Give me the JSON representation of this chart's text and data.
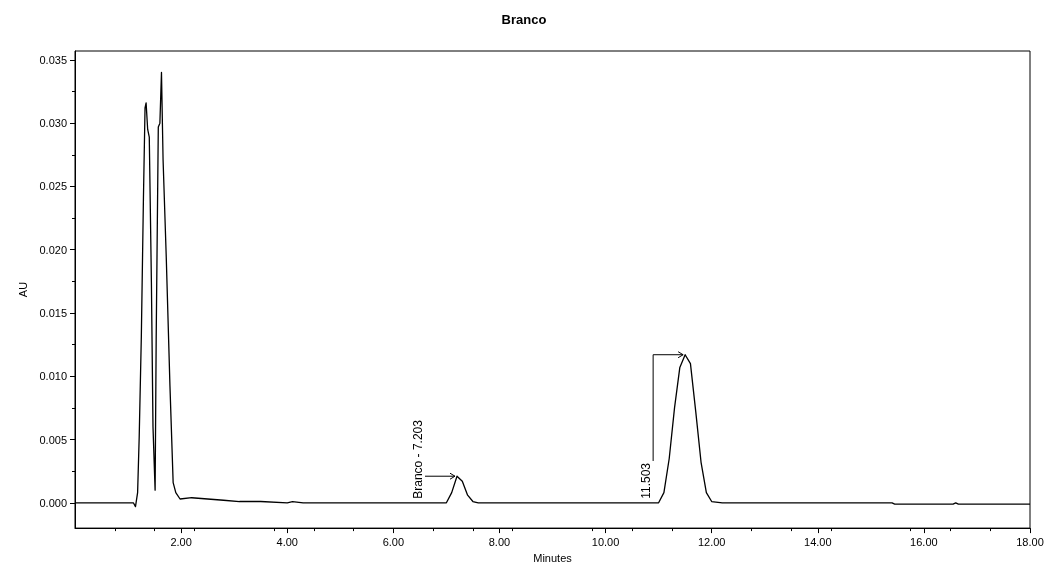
{
  "chart_data": {
    "type": "line",
    "title": "Branco",
    "xlabel": "Minutes",
    "ylabel": "AU",
    "x": [
      0,
      0.5,
      1.0,
      1.1,
      1.14,
      1.18,
      1.21,
      1.25,
      1.29,
      1.32,
      1.34,
      1.37,
      1.4,
      1.44,
      1.47,
      1.51,
      1.53,
      1.57,
      1.6,
      1.63,
      1.66,
      1.72,
      1.79,
      1.85,
      1.9,
      1.98,
      2.2,
      2.5,
      2.8,
      3.1,
      3.5,
      4.0,
      4.1,
      4.3,
      5.0,
      6.0,
      7.0,
      7.1,
      7.2,
      7.3,
      7.4,
      7.5,
      7.6,
      8.0,
      9.0,
      10.0,
      11.0,
      11.1,
      11.2,
      11.3,
      11.4,
      11.5,
      11.6,
      11.7,
      11.8,
      11.9,
      12.0,
      12.2,
      13.0,
      14.0,
      15.0,
      15.4,
      15.45,
      16.0,
      16.55,
      16.6,
      16.65,
      17.0,
      18.0
    ],
    "values": [
      0,
      0,
      0,
      0,
      -0.0003,
      0.0008,
      0.0052,
      0.0131,
      0.0241,
      0.0312,
      0.0316,
      0.0295,
      0.0289,
      0.0174,
      0.006,
      0.001,
      0.0129,
      0.0297,
      0.03,
      0.034,
      0.0271,
      0.0194,
      0.0092,
      0.0016,
      0.0008,
      0.0003,
      0.0004,
      0.0003,
      0.0002,
      0.0001,
      0.0001,
      0,
      0.0001,
      0,
      0,
      0,
      0,
      0.0008,
      0.0021,
      0.0017,
      0.0006,
      0.0001,
      0,
      0,
      0,
      0,
      0,
      0.0008,
      0.0035,
      0.0075,
      0.0107,
      0.0117,
      0.011,
      0.0072,
      0.0032,
      0.0008,
      0.0001,
      0,
      0,
      0,
      0,
      0,
      -0.0001,
      -0.0001,
      -0.0001,
      0,
      -0.0001,
      -0.0001,
      -0.0001
    ],
    "color": "#000000",
    "marker": "none",
    "line_style": "solid",
    "xlim": [
      0,
      18
    ],
    "ylim": [
      -0.002,
      0.0357
    ],
    "xticks": [
      {
        "value": 2,
        "label": "2.00"
      },
      {
        "value": 4,
        "label": "4.00"
      },
      {
        "value": 6,
        "label": "6.00"
      },
      {
        "value": 8,
        "label": "8.00"
      },
      {
        "value": 10,
        "label": "10.00"
      },
      {
        "value": 12,
        "label": "12.00"
      },
      {
        "value": 14,
        "label": "14.00"
      },
      {
        "value": 16,
        "label": "16.00"
      },
      {
        "value": 18,
        "label": "18.00"
      }
    ],
    "yticks": [
      {
        "value": 0,
        "label": "0.000"
      },
      {
        "value": 0.005,
        "label": "0.005"
      },
      {
        "value": 0.01,
        "label": "0.010"
      },
      {
        "value": 0.015,
        "label": "0.015"
      },
      {
        "value": 0.02,
        "label": "0.020"
      },
      {
        "value": 0.025,
        "label": "0.025"
      },
      {
        "value": 0.03,
        "label": "0.030"
      },
      {
        "value": 0.035,
        "label": "0.035"
      }
    ],
    "annotations": [
      {
        "text": "Branco - 7.203",
        "x": 7.2,
        "y": 0.0021
      },
      {
        "text": "11.503",
        "x": 11.5,
        "y": 0.0117
      }
    ]
  }
}
